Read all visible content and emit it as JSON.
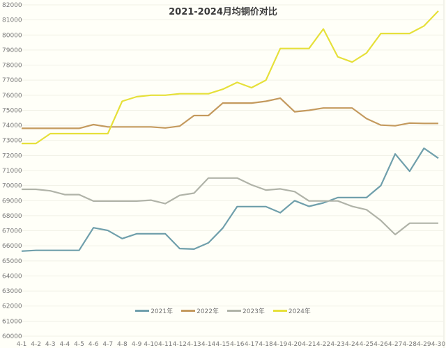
{
  "chart_data": {
    "type": "line",
    "title": "2021-2024月均铜价对比",
    "xlabel": "",
    "ylabel": "",
    "ylim": [
      60000,
      82000
    ],
    "ytick_step": 1000,
    "grid": true,
    "legend_position": "bottom-inside",
    "categories": [
      "4-1",
      "4-2",
      "4-3",
      "4-4",
      "4-5",
      "4-6",
      "4-7",
      "4-8",
      "4-9",
      "4-10",
      "4-11",
      "4-12",
      "4-13",
      "4-14",
      "4-15",
      "4-16",
      "4-17",
      "4-18",
      "4-19",
      "4-20",
      "4-21",
      "4-22",
      "4-23",
      "4-24",
      "4-25",
      "4-26",
      "4-27",
      "4-28",
      "4-29",
      "4-30"
    ],
    "series": [
      {
        "name": "2021年",
        "color": "#6f9fab",
        "values": [
          65650,
          65700,
          65700,
          65700,
          65700,
          67200,
          67020,
          66480,
          66800,
          66800,
          66800,
          65820,
          65780,
          66200,
          67180,
          68600,
          68600,
          68600,
          68200,
          69000,
          68620,
          68850,
          69200,
          69200,
          69200,
          70000,
          72100,
          70950,
          72480,
          71820
        ]
      },
      {
        "name": "2022年",
        "color": "#c49a5e",
        "values": [
          73800,
          73800,
          73800,
          73800,
          73800,
          74050,
          73900,
          73900,
          73900,
          73900,
          73830,
          73950,
          74650,
          74650,
          75480,
          75480,
          75480,
          75600,
          75800,
          74900,
          75000,
          75150,
          75150,
          75150,
          74450,
          74020,
          73970,
          74150,
          74130,
          74130
        ]
      },
      {
        "name": "2023年",
        "color": "#b0b3a8",
        "values": [
          69750,
          69750,
          69650,
          69400,
          69400,
          68970,
          68970,
          68970,
          68970,
          69030,
          68800,
          69350,
          69500,
          70500,
          70500,
          70500,
          70050,
          69700,
          69780,
          69600,
          68980,
          68980,
          68980,
          68620,
          68400,
          67680,
          66750,
          67500,
          67500,
          67500
        ]
      },
      {
        "name": "2024年",
        "color": "#e6e03a",
        "values": [
          72800,
          72800,
          73450,
          73450,
          73450,
          73450,
          73450,
          75600,
          75900,
          76000,
          76000,
          76100,
          76100,
          76100,
          76400,
          76850,
          76500,
          77000,
          79100,
          79100,
          79100,
          80400,
          78550,
          78200,
          78800,
          80100,
          80100,
          80100,
          80600,
          81600
        ]
      }
    ]
  },
  "legend": {
    "items": [
      {
        "label": "2021年",
        "color": "#6f9fab"
      },
      {
        "label": "2022年",
        "color": "#c49a5e"
      },
      {
        "label": "2023年",
        "color": "#b0b3a8"
      },
      {
        "label": "2024年",
        "color": "#e6e03a"
      }
    ]
  }
}
